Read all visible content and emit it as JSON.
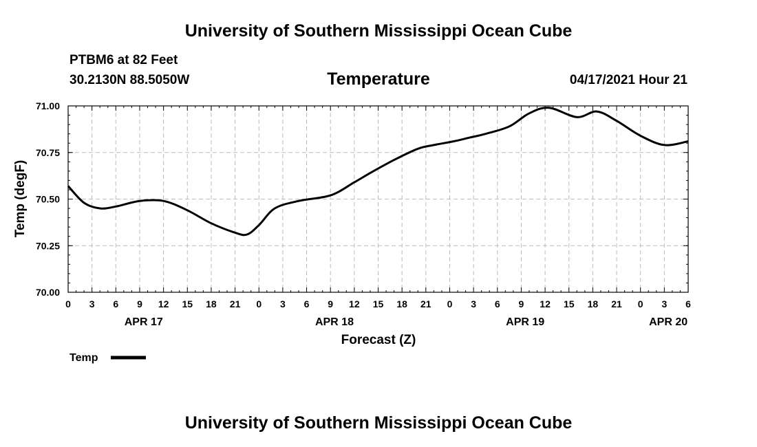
{
  "header": {
    "title": "University of Southern Mississippi Ocean Cube",
    "station": "PTBM6 at 82 Feet",
    "coords": "30.2130N  88.5050W",
    "variable": "Temperature",
    "datetime": "04/17/2021 Hour 21"
  },
  "footer": {
    "title": "University of Southern Mississippi Ocean Cube"
  },
  "legend": {
    "label": "Temp"
  },
  "colors": {
    "line": "#000000",
    "grid": "#bbbbbb"
  },
  "chart_data": {
    "type": "line",
    "title": "Temperature",
    "xlabel": "Forecast (Z)",
    "ylabel": "Temp (degF)",
    "ylim": [
      70.0,
      71.0
    ],
    "y_ticks": [
      "70.00",
      "70.25",
      "70.50",
      "70.75",
      "71.00"
    ],
    "xlim": [
      0,
      78
    ],
    "x_ticks": [
      "0",
      "3",
      "6",
      "9",
      "12",
      "15",
      "18",
      "21",
      "0",
      "3",
      "6",
      "9",
      "12",
      "15",
      "18",
      "21",
      "0",
      "3",
      "6",
      "9",
      "12",
      "15",
      "18",
      "21",
      "0",
      "3",
      "6"
    ],
    "date_labels": [
      {
        "label": "APR 17",
        "hour": 9.5
      },
      {
        "label": "APR 18",
        "hour": 33.5
      },
      {
        "label": "APR 19",
        "hour": 57.5
      },
      {
        "label": "APR 20",
        "hour": 75.5
      }
    ],
    "grid": true,
    "legend": "bottom-left",
    "series": [
      {
        "name": "Temp",
        "x": [
          0,
          2,
          4,
          6,
          9,
          12,
          15,
          18,
          21,
          22.5,
          24,
          26,
          29,
          33,
          36,
          38,
          41,
          44,
          46,
          48.5,
          50.5,
          52.5,
          55.5,
          58,
          60.5,
          64,
          66.5,
          69,
          72,
          75,
          78
        ],
        "y": [
          70.57,
          70.48,
          70.45,
          70.46,
          70.49,
          70.49,
          70.44,
          70.37,
          70.32,
          70.31,
          70.36,
          70.45,
          70.49,
          70.52,
          70.59,
          70.64,
          70.71,
          70.77,
          70.79,
          70.81,
          70.83,
          70.85,
          70.89,
          70.96,
          70.99,
          70.94,
          70.97,
          70.92,
          70.84,
          70.79,
          70.81
        ]
      }
    ]
  }
}
